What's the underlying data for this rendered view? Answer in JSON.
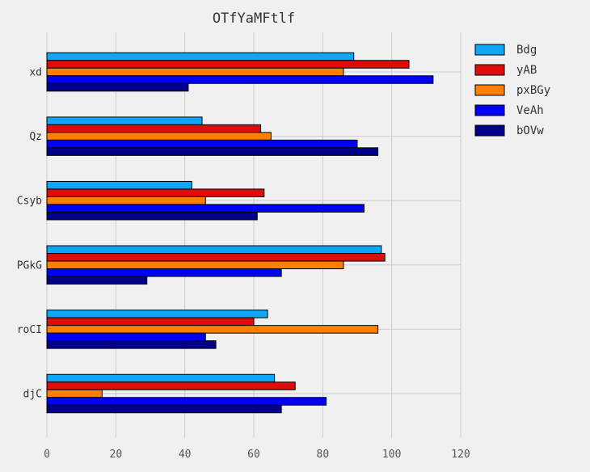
{
  "chart_data": {
    "type": "bar",
    "orientation": "horizontal",
    "title": "OTfYaMFtlf",
    "xlabel": "",
    "ylabel": "",
    "xlim": [
      0,
      120
    ],
    "xticks": [
      "0",
      "20",
      "40",
      "60",
      "80",
      "100",
      "120"
    ],
    "categories": [
      "xd",
      "Qz",
      "Csyb",
      "PGkG",
      "roCI",
      "djC"
    ],
    "series": [
      {
        "name": "Bdg",
        "color": "#10a5f5",
        "values": [
          89,
          45,
          42,
          97,
          64,
          66
        ]
      },
      {
        "name": "yAB",
        "color": "#e00b0b",
        "values": [
          105,
          62,
          63,
          98,
          60,
          72
        ]
      },
      {
        "name": "pxBGy",
        "color": "#ff8000",
        "values": [
          86,
          65,
          46,
          86,
          96,
          16
        ]
      },
      {
        "name": "VeAh",
        "color": "#0000f5",
        "values": [
          112,
          90,
          92,
          68,
          46,
          81
        ]
      },
      {
        "name": "bOVw",
        "color": "#00008b",
        "values": [
          41,
          96,
          61,
          29,
          49,
          68
        ]
      }
    ],
    "grid": true,
    "legend": "top-right"
  }
}
